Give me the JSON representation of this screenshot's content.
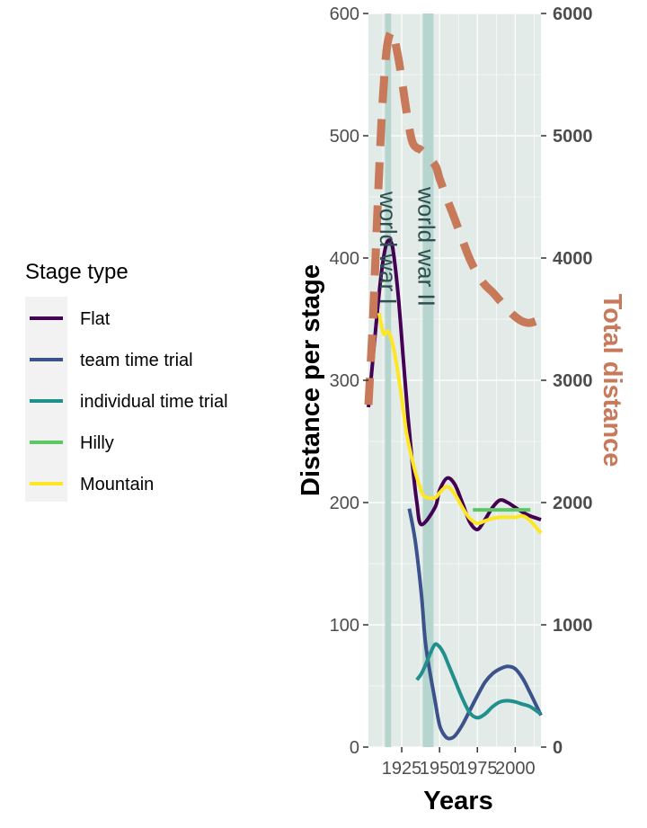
{
  "chart_data": {
    "type": "line",
    "title": "",
    "xlabel": "Years",
    "ylabel": "Distance per stage",
    "y2label": "Total distance",
    "xlim": [
      1903,
      2017
    ],
    "ylim": [
      0,
      600
    ],
    "y2lim": [
      0,
      6000
    ],
    "x_ticks": [
      1925,
      1950,
      1975,
      2000
    ],
    "y_ticks": [
      0,
      100,
      200,
      300,
      400,
      500,
      600
    ],
    "y2_ticks": [
      0,
      1000,
      2000,
      3000,
      4000,
      5000,
      6000
    ],
    "grid": true,
    "legend": {
      "title": "Stage type",
      "position": "left"
    },
    "shaded_periods": [
      {
        "label": "world war I",
        "start": 1914,
        "end": 1918,
        "color": "#b7d5cf"
      },
      {
        "label": "world war II",
        "start": 1939,
        "end": 1946,
        "color": "#b7d5cf"
      }
    ],
    "series": [
      {
        "name": "Flat",
        "color": "#440154",
        "x": [
          1903,
          1906,
          1909,
          1912,
          1915,
          1918,
          1920,
          1923,
          1926,
          1929,
          1932,
          1935,
          1938,
          1947,
          1950,
          1955,
          1960,
          1965,
          1970,
          1975,
          1980,
          1985,
          1990,
          1995,
          2000,
          2005,
          2010,
          2017
        ],
        "y": [
          278,
          318,
          358,
          392,
          412,
          413,
          400,
          365,
          318,
          272,
          232,
          200,
          182,
          196,
          210,
          220,
          215,
          200,
          184,
          178,
          186,
          196,
          202,
          200,
          196,
          192,
          189,
          186
        ]
      },
      {
        "name": "team time trial",
        "color": "#3b528b",
        "x": [
          1930,
          1934,
          1938,
          1941,
          1947,
          1950,
          1953,
          1956,
          1960,
          1965,
          1970,
          1975,
          1980,
          1985,
          1990,
          1995,
          2000,
          2005,
          2010,
          2017
        ],
        "y": [
          195,
          168,
          125,
          82,
          38,
          18,
          10,
          7,
          9,
          18,
          30,
          42,
          53,
          60,
          64,
          66,
          64,
          56,
          44,
          26
        ]
      },
      {
        "name": "individual time trial",
        "color": "#21908c",
        "x": [
          1935,
          1938,
          1941,
          1944,
          1947,
          1950,
          1953,
          1956,
          1960,
          1965,
          1970,
          1975,
          1980,
          1985,
          1990,
          1995,
          2000,
          2005,
          2010,
          2017
        ],
        "y": [
          55,
          60,
          68,
          77,
          84,
          82,
          76,
          67,
          55,
          40,
          28,
          24,
          27,
          33,
          37,
          38,
          37,
          35,
          33,
          27
        ]
      },
      {
        "name": "Hilly",
        "color": "#5dc863",
        "x": [
          1972,
          2010
        ],
        "y": [
          194,
          194
        ]
      },
      {
        "name": "Mountain",
        "color": "#fde725",
        "x": [
          1910,
          1913,
          1916,
          1919,
          1922,
          1925,
          1928,
          1931,
          1934,
          1937,
          1940,
          1947,
          1950,
          1955,
          1960,
          1965,
          1970,
          1975,
          1980,
          1985,
          1990,
          1995,
          2000,
          2005,
          2010,
          2017
        ],
        "y": [
          355,
          338,
          340,
          330,
          310,
          285,
          258,
          240,
          225,
          213,
          205,
          204,
          208,
          213,
          207,
          196,
          187,
          183,
          185,
          187,
          188,
          188,
          188,
          189,
          185,
          175
        ]
      },
      {
        "name": "Total distance",
        "axis": "right",
        "color": "#c8795a",
        "dashed": true,
        "x": [
          1903,
          1906,
          1909,
          1912,
          1915,
          1918,
          1920,
          1923,
          1926,
          1929,
          1932,
          1935,
          1938,
          1947,
          1950,
          1955,
          1960,
          1965,
          1970,
          1975,
          1980,
          1985,
          1990,
          1995,
          2000,
          2005,
          2010,
          2017
        ],
        "y": [
          2800,
          3500,
          4400,
          5200,
          5700,
          5850,
          5800,
          5620,
          5380,
          5130,
          4950,
          4900,
          4880,
          4760,
          4650,
          4480,
          4320,
          4150,
          3990,
          3870,
          3780,
          3720,
          3650,
          3580,
          3520,
          3480,
          3470,
          3500
        ]
      }
    ]
  }
}
